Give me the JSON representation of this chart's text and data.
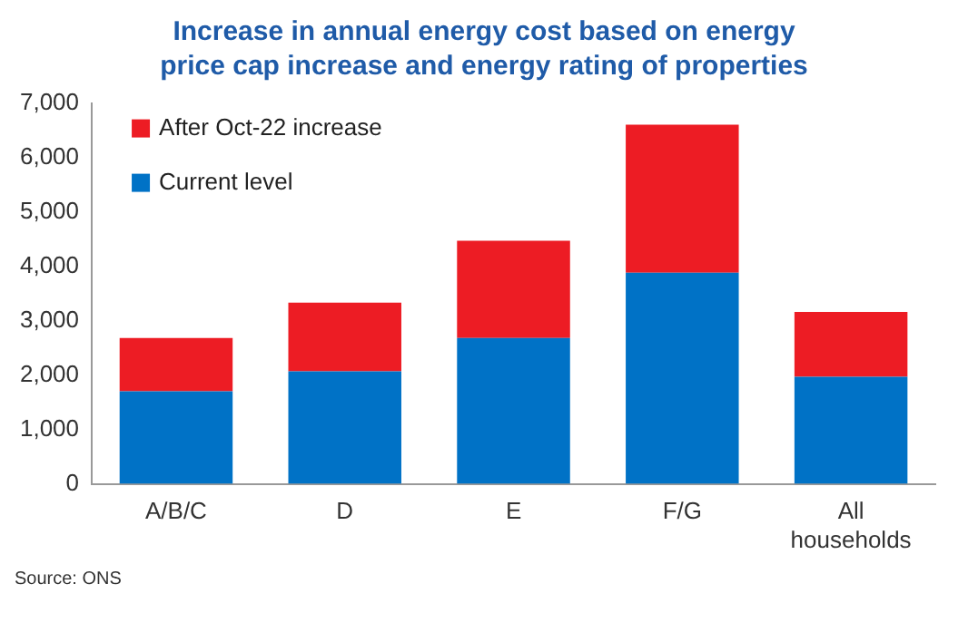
{
  "chart_data": {
    "type": "bar",
    "title": "Increase in annual energy cost based on energy price cap increase and energy rating of properties",
    "categories": [
      "A/B/C",
      "D",
      "E",
      "F/G",
      "All households"
    ],
    "series": [
      {
        "name": "Current level",
        "color": "#0072c6",
        "values": [
          1700,
          2070,
          2680,
          3880,
          1970
        ]
      },
      {
        "name": "After Oct-22 increase",
        "color": "#ed1c24",
        "values": [
          980,
          1260,
          1790,
          2720,
          1190
        ]
      }
    ],
    "stacked": true,
    "ylim": [
      0,
      7000
    ],
    "yticks": [
      0,
      {
        "value": 1000,
        "label": "1,000"
      },
      {
        "value": 2000,
        "label": "2,000"
      },
      {
        "value": 3000,
        "label": "3,000"
      },
      {
        "value": 4000,
        "label": "4,000"
      },
      {
        "value": 5000,
        "label": "5,000"
      },
      {
        "value": 6000,
        "label": "6,000"
      },
      {
        "value": 7000,
        "label": "7,000"
      }
    ],
    "grid": false,
    "legend": "top left",
    "annotations": [
      "Source: ONS"
    ]
  }
}
